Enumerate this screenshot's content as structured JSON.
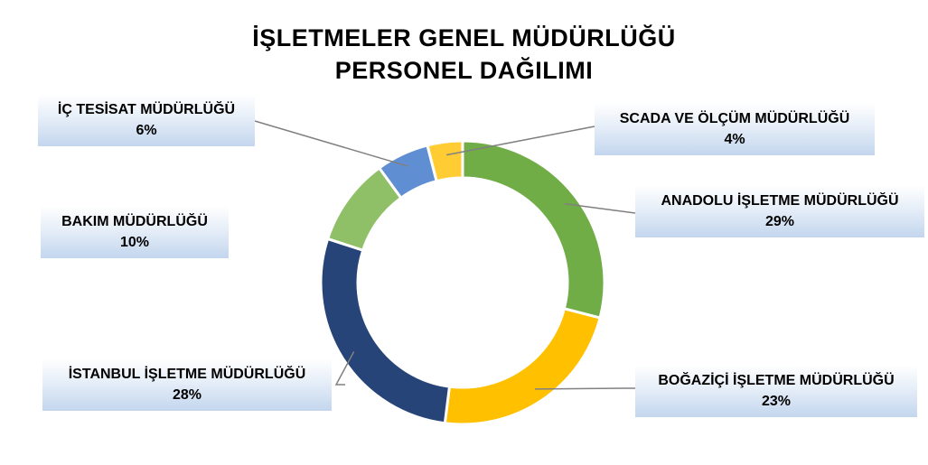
{
  "chart_data": {
    "type": "pie",
    "variant": "donut",
    "title": [
      "İŞLETMELER GENEL MÜDÜRLÜĞÜ",
      "PERSONEL DAĞILIMI"
    ],
    "legend": "none",
    "slices": [
      {
        "name": "ANADOLU İŞLETME MÜDÜRLÜĞÜ",
        "value": 29,
        "label": "29%",
        "color": "#70AD47"
      },
      {
        "name": "BOĞAZİÇİ İŞLETME MÜDÜRLÜĞÜ",
        "value": 23,
        "label": "23%",
        "color": "#FFC000"
      },
      {
        "name": "İSTANBUL İŞLETME MÜDÜRLÜĞÜ",
        "value": 28,
        "label": "28%",
        "color": "#264478"
      },
      {
        "name": "BAKIM MÜDÜRLÜĞÜ",
        "value": 10,
        "label": "10%",
        "color": "#8FC068"
      },
      {
        "name": "İÇ TESİSAT MÜDÜRLÜĞÜ",
        "value": 6,
        "label": "6%",
        "color": "#5F8FD2"
      },
      {
        "name": "SCADA VE ÖLÇÜM MÜDÜRLÜĞÜ",
        "value": 4,
        "label": "4%",
        "color": "#FFCD33"
      }
    ]
  }
}
